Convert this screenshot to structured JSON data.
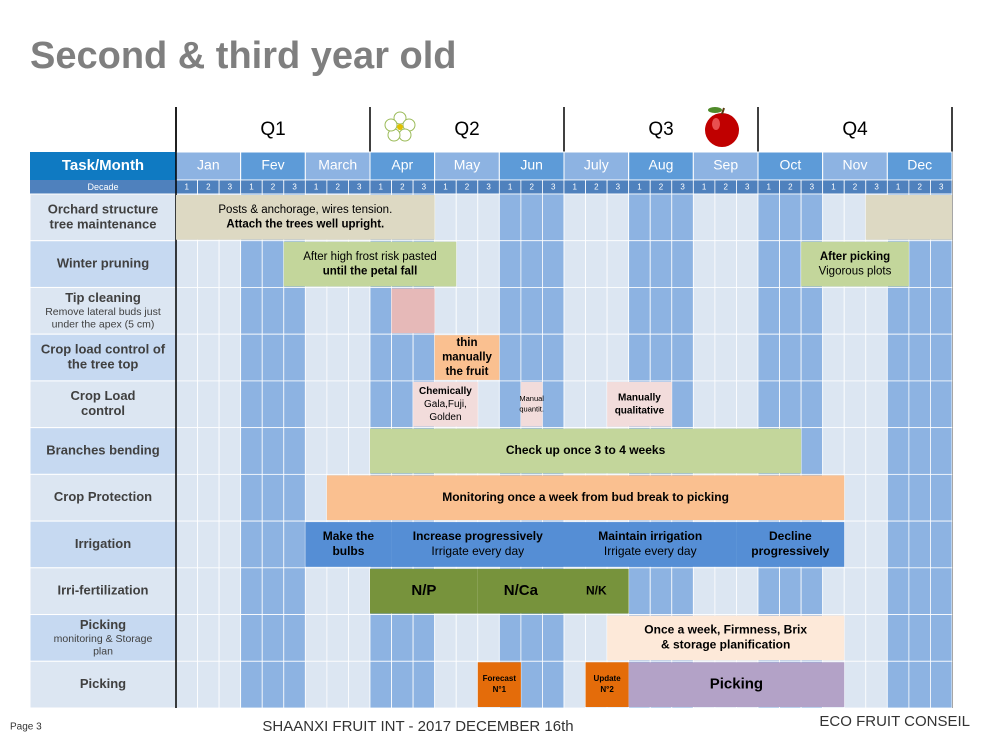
{
  "title": "Second & third year old",
  "quarters": [
    "Q1",
    "Q2",
    "Q3",
    "Q4"
  ],
  "header": "Task/Month",
  "months": [
    "Jan",
    "Fev",
    "March",
    "Apr",
    "May",
    "Jun",
    "July",
    "Aug",
    "Sep",
    "Oct",
    "Nov",
    "Dec"
  ],
  "decade_header": "Decade",
  "decades": [
    "1",
    "2",
    "3"
  ],
  "tasks": [
    {
      "lines": [
        "Orchard structure",
        "tree maintenance"
      ]
    },
    {
      "lines": [
        "Winter pruning"
      ]
    },
    {
      "lines": [
        "Tip cleaning"
      ],
      "sub": [
        "Remove lateral buds just",
        "under the apex (5 cm)"
      ]
    },
    {
      "lines": [
        "Crop load control of",
        "the tree top"
      ]
    },
    {
      "lines": [
        "Crop Load",
        "control"
      ]
    },
    {
      "lines": [
        "Branches bending"
      ]
    },
    {
      "lines": [
        "Crop Protection"
      ]
    },
    {
      "lines": [
        "Irrigation"
      ]
    },
    {
      "lines": [
        "Irri-fertilization"
      ]
    },
    {
      "lines": [
        "Picking"
      ],
      "sub": [
        "monitoring & Storage",
        "plan"
      ]
    },
    {
      "lines": [
        "Picking"
      ]
    }
  ],
  "bars": [
    {
      "lines": [
        "Posts & anchorage, wires tension.",
        "Attach the trees well upright."
      ]
    },
    {
      "lines": []
    },
    {
      "lines": [
        "After high frost risk pasted",
        "until the petal fall"
      ]
    },
    {
      "lines": [
        "After picking",
        "Vigorous plots"
      ]
    },
    {
      "lines": []
    },
    {
      "lines": [
        "thin",
        "manually",
        "the fruit"
      ]
    },
    {
      "lines": [
        "Chemically",
        "Gala,Fuji,",
        "Golden"
      ]
    },
    {
      "lines": [
        "Manual",
        "quantit."
      ]
    },
    {
      "lines": [
        "Manually",
        "qualitative"
      ]
    },
    {
      "lines": [
        "Check up once 3 to 4 weeks"
      ]
    },
    {
      "lines": [
        "Monitoring once a week from bud break to picking"
      ]
    },
    {
      "lines": [
        "Make the",
        "bulbs"
      ]
    },
    {
      "lines": [
        "Increase progressively",
        "Irrigate every day"
      ]
    },
    {
      "lines": [
        "Maintain irrigation",
        "Irrigate every day"
      ]
    },
    {
      "lines": [
        "Decline",
        "progressively"
      ]
    },
    {
      "lines": [
        "N/P"
      ]
    },
    {
      "lines": [
        "N/Ca"
      ]
    },
    {
      "lines": [
        "N/K"
      ]
    },
    {
      "lines": [
        "Once a week, Firmness, Brix",
        "& storage planification"
      ]
    },
    {
      "lines": [
        "Forecast",
        "N°1"
      ]
    },
    {
      "lines": [
        "Update",
        "N°2"
      ]
    },
    {
      "lines": [
        "Picking"
      ]
    }
  ],
  "footer": {
    "page": "Page 3",
    "center": "SHAANXI FRUIT INT -  2017 DECEMBER 16th",
    "right": "ECO FRUIT CONSEIL"
  }
}
